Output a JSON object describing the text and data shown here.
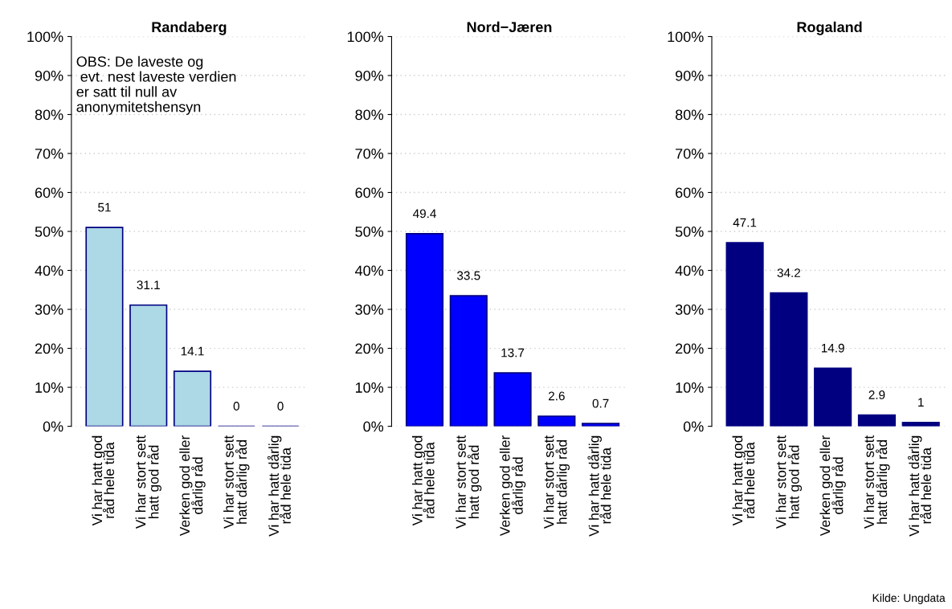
{
  "chart_data": [
    {
      "type": "bar",
      "title": "Randaberg",
      "categories": [
        "Vi har hatt god\nråd hele tida",
        "Vi har stort sett\nhatt god råd",
        "Verken god eller\ndårlig råd",
        "Vi har stort sett\nhatt dårlig råd",
        "Vi har hatt dårlig\nråd hele tida"
      ],
      "values": [
        51,
        31.1,
        14.1,
        0,
        0
      ],
      "color": "#add8e6",
      "ylim": [
        0,
        100
      ],
      "yticks": [
        {
          "value": 0,
          "label": "0%"
        },
        {
          "value": 10,
          "label": "10%"
        },
        {
          "value": 20,
          "label": "20%"
        },
        {
          "value": 30,
          "label": "30%"
        },
        {
          "value": 40,
          "label": "40%"
        },
        {
          "value": 50,
          "label": "50%"
        },
        {
          "value": 60,
          "label": "60%"
        },
        {
          "value": 70,
          "label": "70%"
        },
        {
          "value": 80,
          "label": "80%"
        },
        {
          "value": 90,
          "label": "90%"
        },
        {
          "value": 100,
          "label": "100%"
        }
      ],
      "grid": "y",
      "data_labels": true,
      "annotations": [
        "OBS: De laveste og\n evt. nest laveste verdien\ner satt til null av\nanonymitetshensyn"
      ]
    },
    {
      "type": "bar",
      "title": "Nord−Jæren",
      "categories": [
        "Vi har hatt god\nråd hele tida",
        "Vi har stort sett\nhatt god råd",
        "Verken god eller\ndårlig råd",
        "Vi har stort sett\nhatt dårlig råd",
        "Vi har hatt dårlig\nråd hele tida"
      ],
      "values": [
        49.4,
        33.5,
        13.7,
        2.6,
        0.7
      ],
      "color": "#0000ff",
      "ylim": [
        0,
        100
      ],
      "yticks": [
        {
          "value": 0,
          "label": "0%"
        },
        {
          "value": 10,
          "label": "10%"
        },
        {
          "value": 20,
          "label": "20%"
        },
        {
          "value": 30,
          "label": "30%"
        },
        {
          "value": 40,
          "label": "40%"
        },
        {
          "value": 50,
          "label": "50%"
        },
        {
          "value": 60,
          "label": "60%"
        },
        {
          "value": 70,
          "label": "70%"
        },
        {
          "value": 80,
          "label": "80%"
        },
        {
          "value": 90,
          "label": "90%"
        },
        {
          "value": 100,
          "label": "100%"
        }
      ],
      "grid": "y",
      "data_labels": true
    },
    {
      "type": "bar",
      "title": "Rogaland",
      "categories": [
        "Vi har hatt god\nråd hele tida",
        "Vi har stort sett\nhatt god råd",
        "Verken god eller\ndårlig råd",
        "Vi har stort sett\nhatt dårlig råd",
        "Vi har hatt dårlig\nråd hele tida"
      ],
      "values": [
        47.1,
        34.2,
        14.9,
        2.9,
        1
      ],
      "color": "#000080",
      "ylim": [
        0,
        100
      ],
      "yticks": [
        {
          "value": 0,
          "label": "0%"
        },
        {
          "value": 10,
          "label": "10%"
        },
        {
          "value": 20,
          "label": "20%"
        },
        {
          "value": 30,
          "label": "30%"
        },
        {
          "value": 40,
          "label": "40%"
        },
        {
          "value": 50,
          "label": "50%"
        },
        {
          "value": 60,
          "label": "60%"
        },
        {
          "value": 70,
          "label": "70%"
        },
        {
          "value": 80,
          "label": "80%"
        },
        {
          "value": 90,
          "label": "90%"
        },
        {
          "value": 100,
          "label": "100%"
        }
      ],
      "grid": "y",
      "data_labels": true,
      "annotations": [
        "Kilde: Ungdata"
      ]
    }
  ]
}
